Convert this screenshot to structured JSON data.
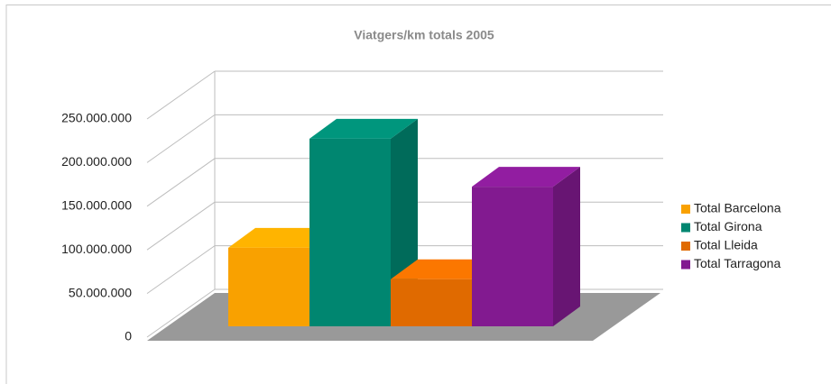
{
  "chart_data": {
    "type": "bar3d",
    "title": "Viatgers/km totals 2005",
    "categories": [
      "Total Barcelona",
      "Total Girona",
      "Total Lleida",
      "Total Tarragona"
    ],
    "values": [
      90000000,
      215000000,
      54000000,
      160000000
    ],
    "colors": [
      "#f9a100",
      "#008670",
      "#e06a00",
      "#821a90"
    ],
    "ylim": [
      0,
      250000000
    ],
    "yticks": [
      0,
      {
        "value": 50000000,
        "label": "50.000.000"
      },
      {
        "value": 100000000,
        "label": "100.000.000"
      },
      {
        "value": 150000000,
        "label": "150.000.000"
      },
      {
        "value": 200000000,
        "label": "200.000.000"
      },
      {
        "value": 250000000,
        "label": "250.000.000"
      }
    ],
    "grid": true,
    "legend": "right"
  }
}
